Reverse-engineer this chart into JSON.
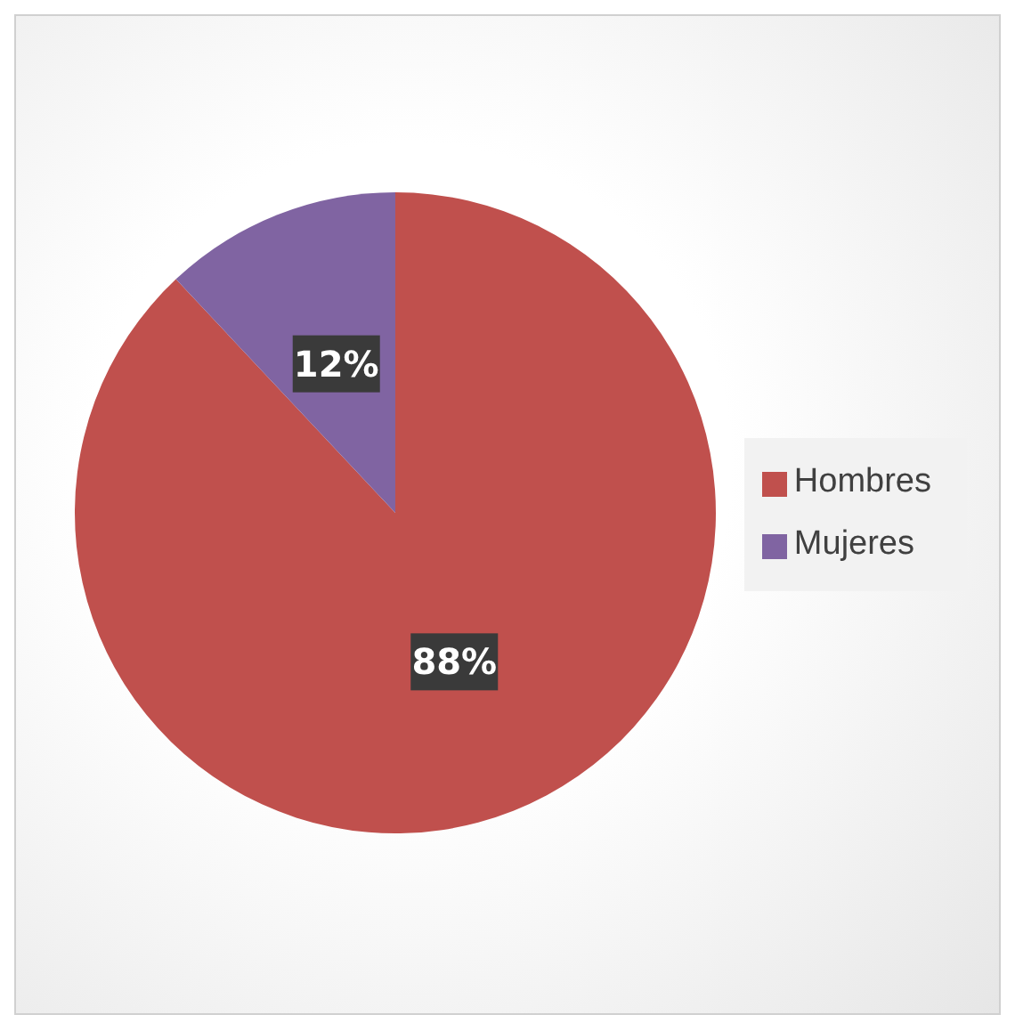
{
  "chart_data": {
    "type": "pie",
    "categories": [
      "Hombres",
      "Mujeres"
    ],
    "values": [
      88,
      12
    ],
    "colors": [
      "#c0504d",
      "#8064a2"
    ],
    "value_labels": [
      "88%",
      "12%"
    ],
    "legend": "right"
  }
}
